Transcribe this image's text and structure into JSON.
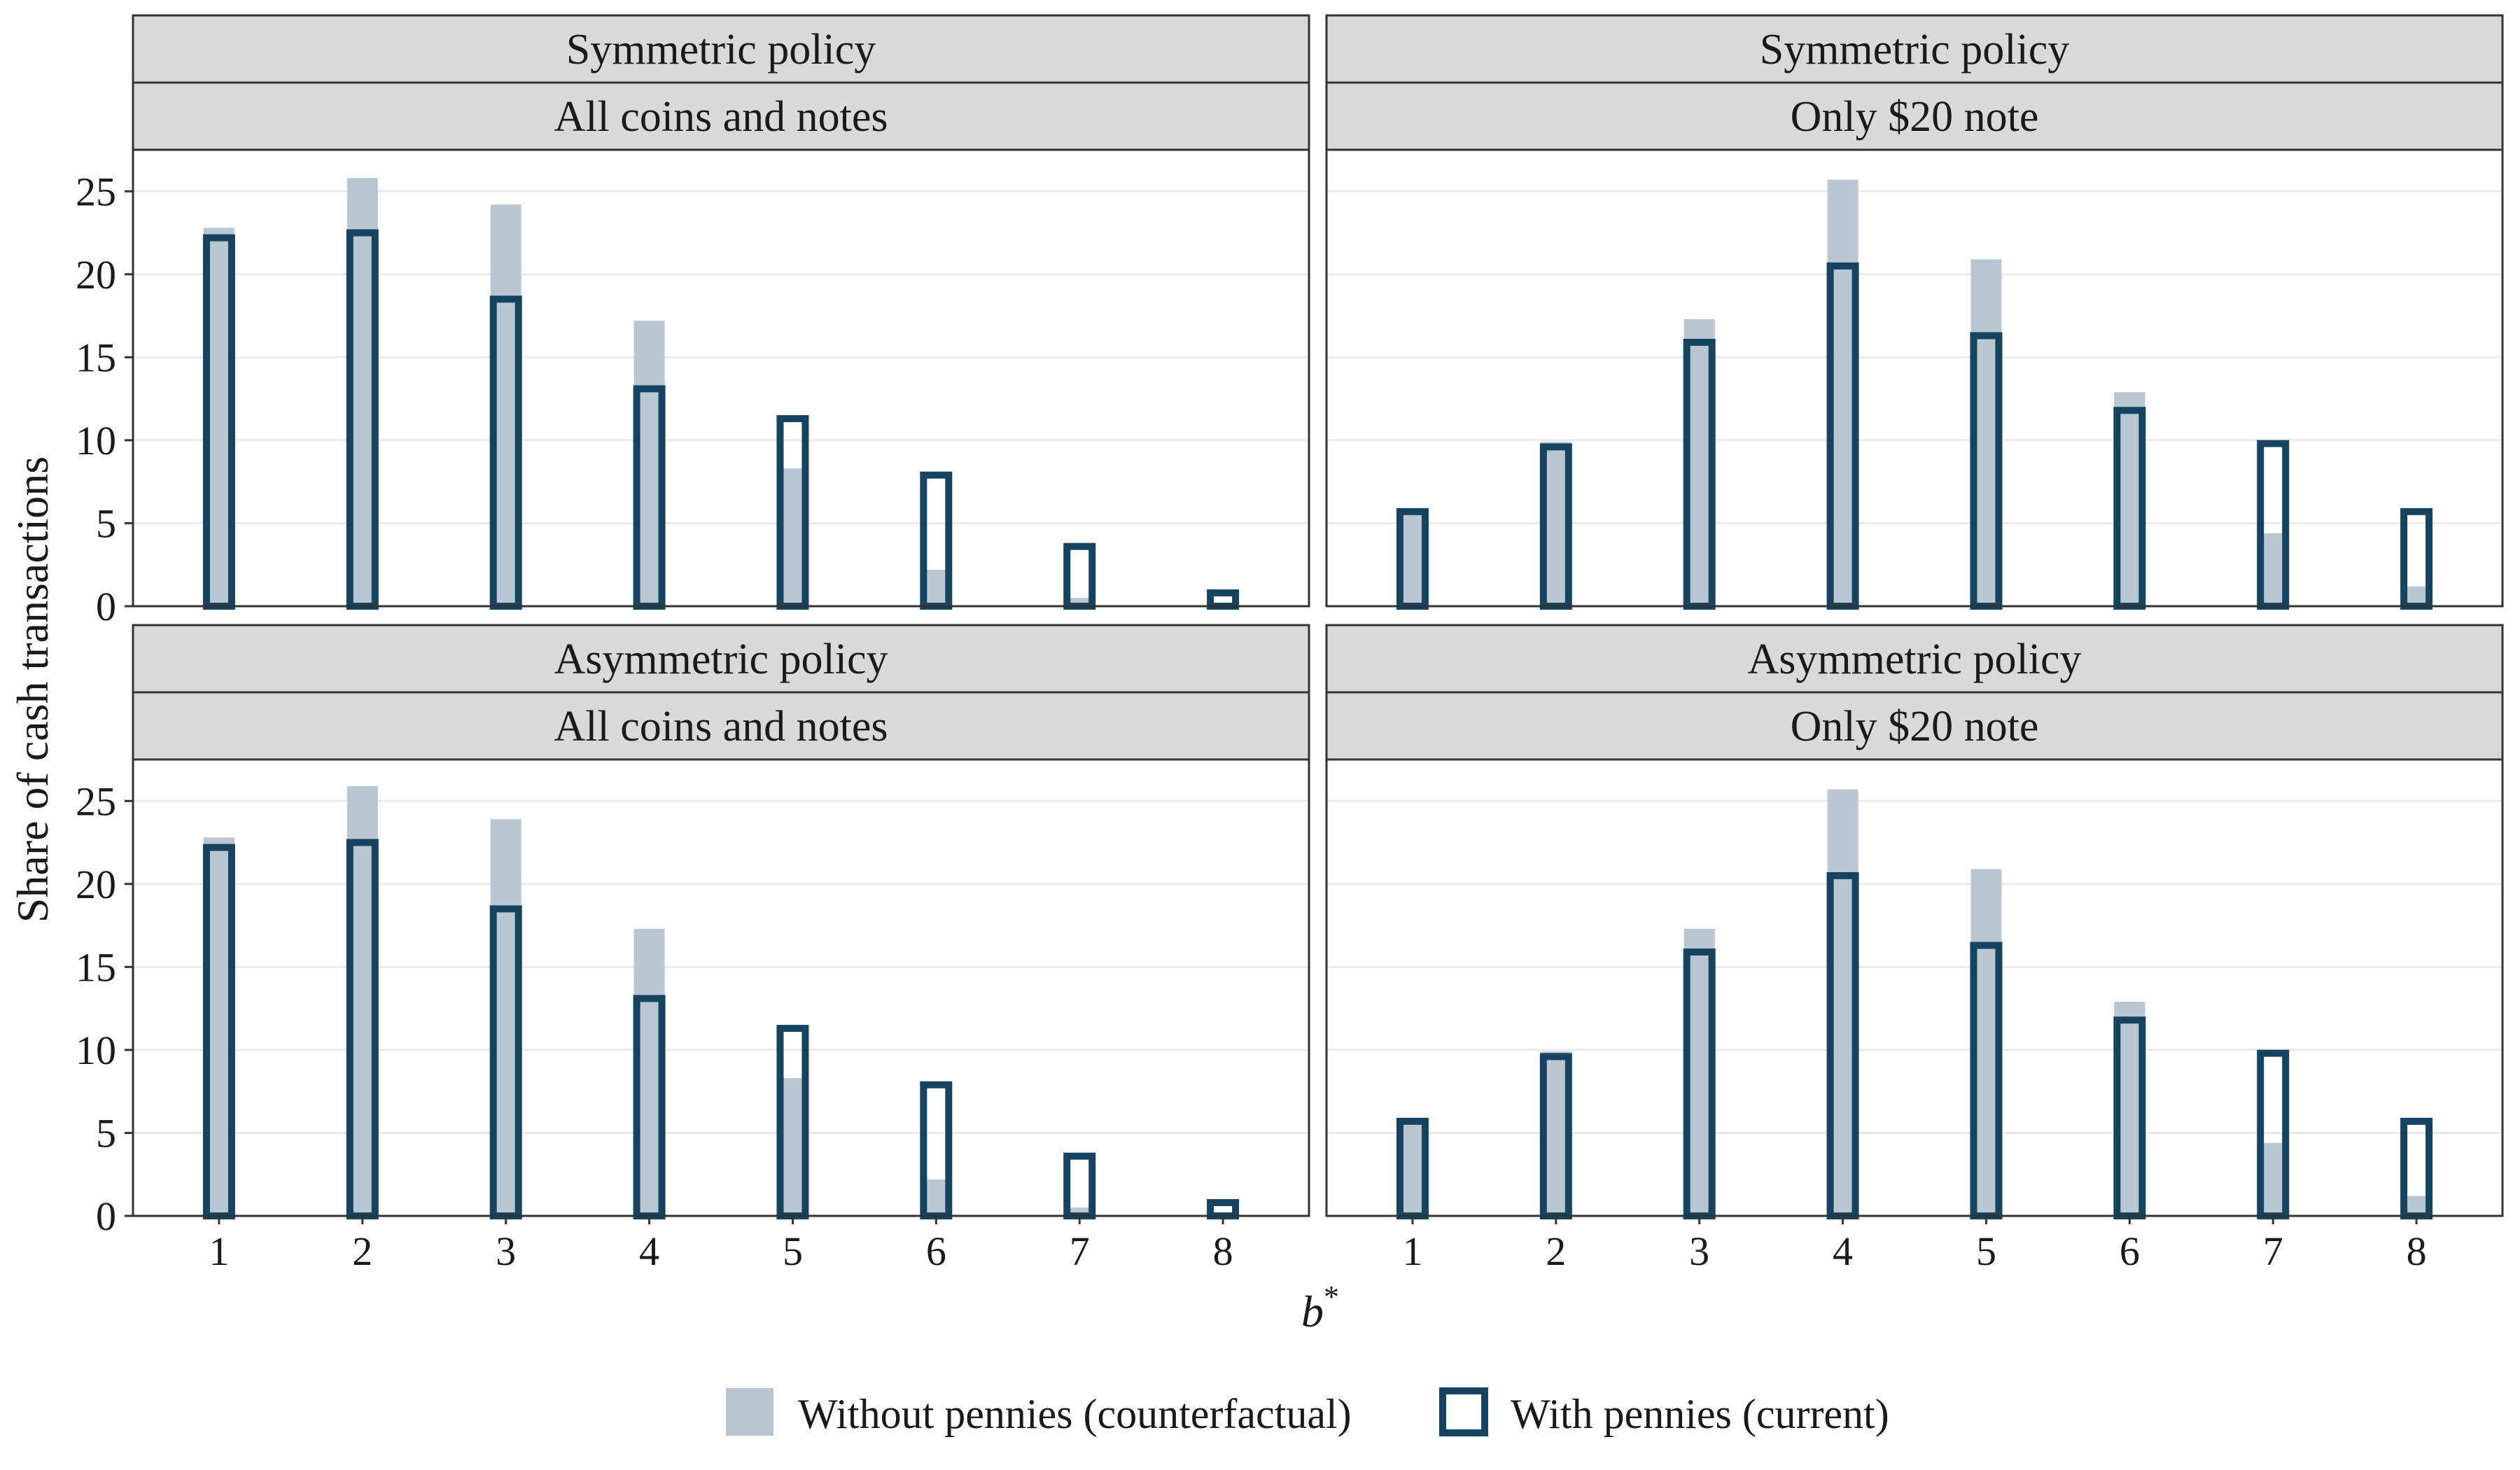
{
  "colors": {
    "background": "#ffffff",
    "strip_fill": "#d9d9d9",
    "panel_border": "#333333",
    "grid": "#ebebeb",
    "without_pennies_fill": "#b8c7d1",
    "with_pennies_outline": "#154360"
  },
  "chart_data": {
    "type": "bar",
    "ylabel": "Share of cash transactions",
    "xlabel": "b",
    "xlabel_superscript": "*",
    "x": [
      1,
      2,
      3,
      4,
      5,
      6,
      7,
      8
    ],
    "x_tick_labels": [
      "1",
      "2",
      "3",
      "4",
      "5",
      "6",
      "7",
      "8"
    ],
    "ylim": [
      0,
      27.5
    ],
    "y_ticks": [
      0,
      5,
      10,
      15,
      20,
      25
    ],
    "grid": true,
    "legend": {
      "position": "bottom",
      "entries": [
        "Without pennies (counterfactual)",
        "With pennies (current)"
      ]
    },
    "panels": [
      {
        "strip_top": "Symmetric policy",
        "strip_bottom": "All coins and notes",
        "series": [
          {
            "name": "Without pennies (counterfactual)",
            "values": [
              22.8,
              25.8,
              24.2,
              17.2,
              8.3,
              2.2,
              0.5,
              0.1
            ]
          },
          {
            "name": "With pennies (current)",
            "values": [
              22.2,
              22.5,
              18.5,
              13.1,
              11.3,
              7.9,
              3.6,
              0.8
            ]
          }
        ]
      },
      {
        "strip_top": "Symmetric policy",
        "strip_bottom": "Only $20 note",
        "series": [
          {
            "name": "Without pennies (counterfactual)",
            "values": [
              5.8,
              9.9,
              17.3,
              25.7,
              20.9,
              12.9,
              4.4,
              1.2
            ]
          },
          {
            "name": "With pennies (current)",
            "values": [
              5.7,
              9.6,
              15.9,
              20.5,
              16.3,
              11.8,
              9.8,
              5.7
            ]
          }
        ]
      },
      {
        "strip_top": "Asymmetric policy",
        "strip_bottom": "All coins and notes",
        "series": [
          {
            "name": "Without pennies (counterfactual)",
            "values": [
              22.8,
              25.9,
              23.9,
              17.3,
              8.3,
              2.2,
              0.5,
              0.1
            ]
          },
          {
            "name": "With pennies (current)",
            "values": [
              22.2,
              22.5,
              18.5,
              13.1,
              11.3,
              7.9,
              3.6,
              0.8
            ]
          }
        ]
      },
      {
        "strip_top": "Asymmetric policy",
        "strip_bottom": "Only $20 note",
        "series": [
          {
            "name": "Without pennies (counterfactual)",
            "values": [
              5.8,
              9.9,
              17.3,
              25.7,
              20.9,
              12.9,
              4.4,
              1.2
            ]
          },
          {
            "name": "With pennies (current)",
            "values": [
              5.7,
              9.6,
              15.9,
              20.5,
              16.3,
              11.8,
              9.8,
              5.7
            ]
          }
        ]
      }
    ]
  }
}
